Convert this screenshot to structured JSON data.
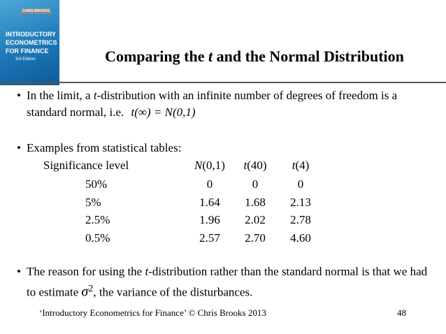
{
  "book_cover": {
    "author": "CHRIS BROOKS",
    "title_lines": [
      "INTRODUCTORY",
      "ECONOMETRICS",
      "FOR FINANCE"
    ],
    "edition": "3rd Edition"
  },
  "title": {
    "before": "Comparing the ",
    "italic": "t",
    "after": " and the Normal Distribution"
  },
  "bullets": [
    {
      "before": "In the limit, a ",
      "italic": "t",
      "after": "-distribution with an infinite number of degrees of freedom is a standard normal, i.e. ",
      "formula": "t(∞) = N(0,1)"
    },
    {
      "text": "Examples from statistical tables:"
    },
    {
      "before": "The reason for using the ",
      "italic": "t",
      "after": "-distribution rather than the standard normal is that we had to estimate ",
      "symbol": "σ",
      "superscript": "2",
      "end": ", the variance of the disturbances."
    }
  ],
  "table": {
    "header": [
      "Significance level",
      {
        "italic": "N",
        "rest": "(0,1)"
      },
      {
        "italic": "t",
        "rest": "(40)"
      },
      {
        "italic": "t",
        "rest": "(4)"
      }
    ],
    "rows": [
      [
        "50%",
        "0",
        "0",
        "0"
      ],
      [
        "5%",
        "1.64",
        "1.68",
        "2.13"
      ],
      [
        "2.5%",
        "1.96",
        "2.02",
        "2.78"
      ],
      [
        "0.5%",
        "2.57",
        "2.70",
        "4.60"
      ]
    ]
  },
  "footer": {
    "text": "‘Introductory Econometrics for Finance’ © Chris Brooks 2013",
    "page": "48"
  }
}
